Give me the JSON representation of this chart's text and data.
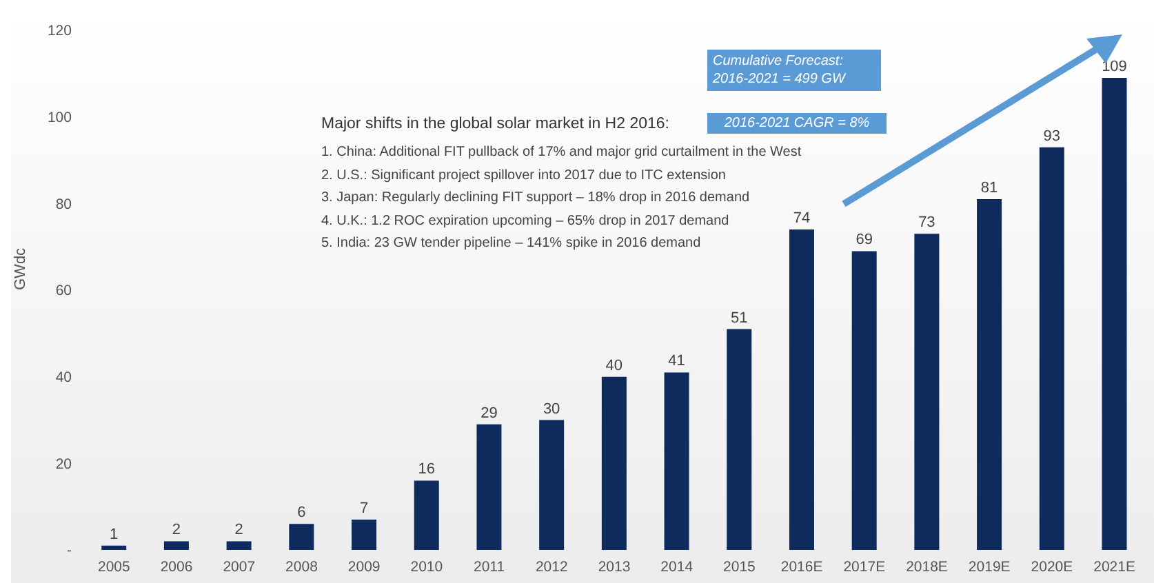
{
  "chart_data": {
    "type": "bar",
    "ylabel": "GWdc",
    "categories": [
      "2005",
      "2006",
      "2007",
      "2008",
      "2009",
      "2010",
      "2011",
      "2012",
      "2013",
      "2014",
      "2015",
      "2016E",
      "2017E",
      "2018E",
      "2019E",
      "2020E",
      "2021E"
    ],
    "values": [
      1,
      2,
      2,
      6,
      7,
      16,
      29,
      30,
      40,
      41,
      51,
      74,
      69,
      73,
      81,
      93,
      109
    ],
    "color": "#0f2a5c",
    "data_labels": true,
    "ylim": [
      0,
      120
    ],
    "yticks": [
      {
        "value": 0,
        "label": "-"
      },
      20,
      40,
      60,
      80,
      100,
      120
    ],
    "annotations": [
      "Major shifts in the global solar market in H2 2016:",
      "1. China: Additional FIT pullback of 17% and major grid curtailment in the West",
      "2. U.S.: Significant project spillover into 2017 due to ITC extension",
      "3. Japan: Regularly declining FIT support – 18% drop in 2016 demand",
      "4. U.K.: 1.2 ROC expiration upcoming – 65% drop in 2017 demand",
      "5. India: 23 GW tender pipeline – 141% spike in 2016 demand",
      "Cumulative Forecast: 2016-2021 = 499 GW",
      "2016-2021 CAGR = 8%"
    ]
  }
}
